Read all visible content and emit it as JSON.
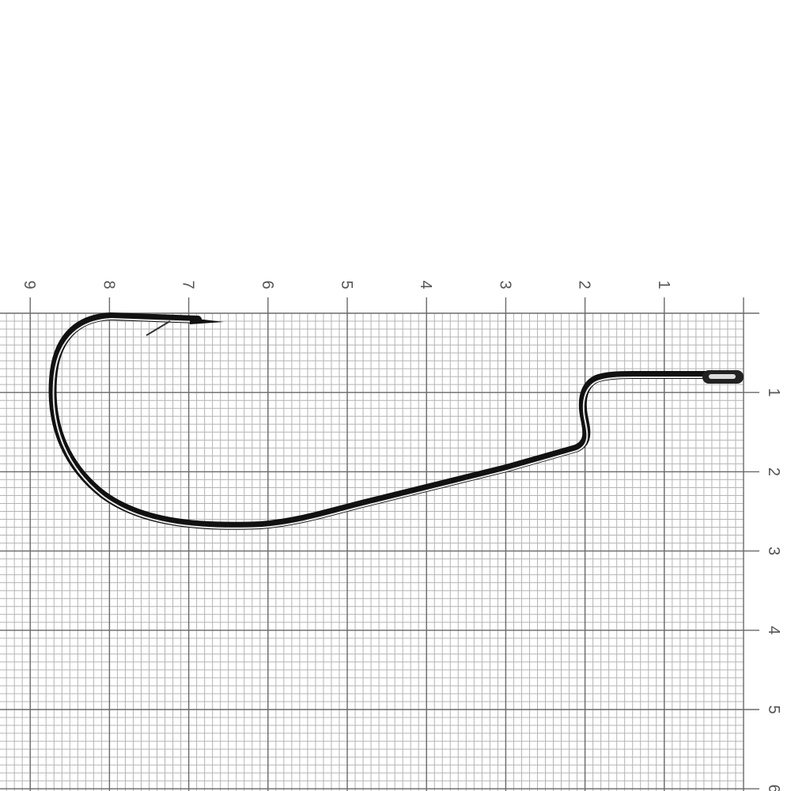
{
  "ruler": {
    "top_labels": [
      "9",
      "8",
      "7",
      "6",
      "5",
      "4",
      "3",
      "2",
      "1"
    ],
    "right_labels": [
      "1",
      "2",
      "3",
      "4",
      "5",
      "6"
    ]
  },
  "colors": {
    "background": "#ffffff",
    "grid_minor": "#b4b4b4",
    "grid_major": "#6a6a6a",
    "hook": "#111111"
  },
  "subject": {
    "icon": "fishing-hook-icon"
  }
}
